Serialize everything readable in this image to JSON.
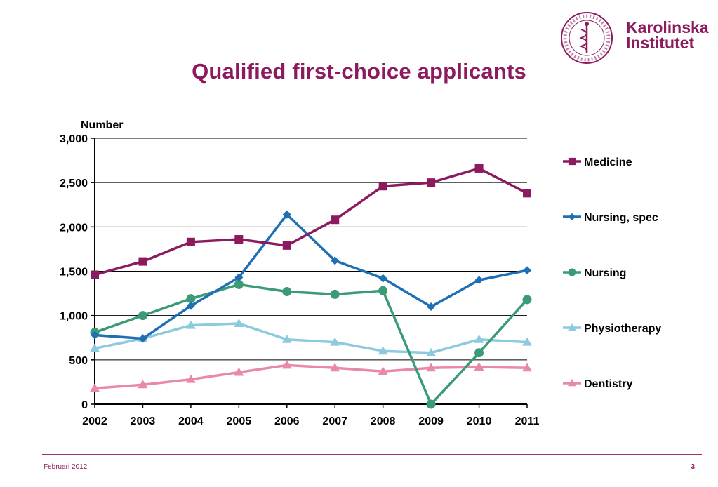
{
  "slide": {
    "title": "Qualified first-choice applicants",
    "footer_date": "Februari 2012",
    "page_number": "3"
  },
  "logo": {
    "line1": "Karolinska",
    "line2": "Institutet",
    "seal_text": "KAROLINSKA INSTITUTET · ANNO 1810",
    "brand_color": "#8b1a5e"
  },
  "chart_data": {
    "type": "line",
    "title": "",
    "ylabel": "Number",
    "xlabel": "",
    "ylim": [
      0,
      3000
    ],
    "yticks": [
      0,
      500,
      1000,
      1500,
      2000,
      2500,
      3000
    ],
    "ytick_labels": [
      "0",
      "500",
      "1,000",
      "1,500",
      "2,000",
      "2,500",
      "3,000"
    ],
    "x": [
      "2002",
      "2003",
      "2004",
      "2005",
      "2006",
      "2007",
      "2008",
      "2009",
      "2010",
      "2011"
    ],
    "grid": "horizontal",
    "legend_position": "right",
    "series": [
      {
        "name": "Medicine",
        "color": "#8b1a5e",
        "marker": "square",
        "values": [
          1460,
          1610,
          1830,
          1860,
          1790,
          2080,
          2460,
          2500,
          2660,
          2380
        ]
      },
      {
        "name": "Nursing, spec",
        "color": "#1f6fb5",
        "marker": "diamond",
        "values": [
          780,
          740,
          1110,
          1430,
          2140,
          1620,
          1420,
          1100,
          1400,
          1510
        ]
      },
      {
        "name": "Nursing",
        "color": "#3a9b76",
        "marker": "circle",
        "values": [
          810,
          1000,
          1190,
          1350,
          1270,
          1240,
          1280,
          0,
          580,
          1180
        ]
      },
      {
        "name": "Physiotherapy",
        "color": "#8ccbde",
        "marker": "triangle",
        "values": [
          630,
          740,
          890,
          910,
          730,
          700,
          600,
          580,
          730,
          700
        ]
      },
      {
        "name": "Dentistry",
        "color": "#e88aa6",
        "marker": "triangle",
        "values": [
          180,
          220,
          280,
          360,
          440,
          410,
          370,
          410,
          420,
          410
        ]
      }
    ]
  }
}
